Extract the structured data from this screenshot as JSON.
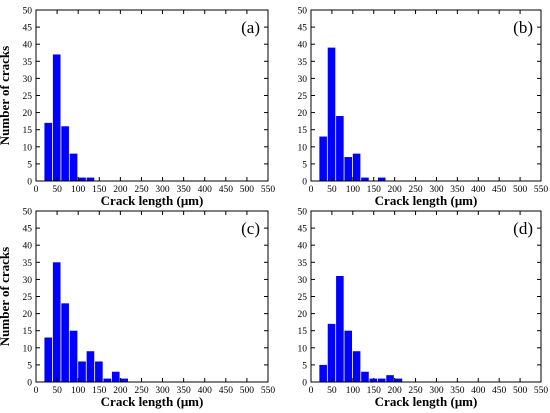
{
  "chart_data": [
    {
      "type": "bar",
      "panel_label": "(a)",
      "xlabel": "Crack length (μm)",
      "ylabel": "Number of cracks",
      "xlim": [
        0,
        550
      ],
      "ylim": [
        0,
        50
      ],
      "xticks": [
        0,
        50,
        100,
        150,
        200,
        250,
        300,
        350,
        400,
        450,
        500,
        550
      ],
      "yticks": [
        0,
        5,
        10,
        15,
        20,
        25,
        30,
        35,
        40,
        45,
        50
      ],
      "bin_width": 20,
      "bins": [
        30,
        50,
        70,
        90,
        110,
        130
      ],
      "values": [
        17,
        37,
        16,
        8,
        1,
        1
      ],
      "bar_color": "#0000ff",
      "grid": false
    },
    {
      "type": "bar",
      "panel_label": "(b)",
      "xlabel": "Crack length (μm)",
      "ylabel": "",
      "xlim": [
        0,
        550
      ],
      "ylim": [
        0,
        50
      ],
      "xticks": [
        0,
        50,
        100,
        150,
        200,
        250,
        300,
        350,
        400,
        450,
        500,
        550
      ],
      "yticks": [
        0,
        5,
        10,
        15,
        20,
        25,
        30,
        35,
        40,
        45,
        50
      ],
      "bin_width": 20,
      "bins": [
        30,
        50,
        70,
        90,
        110,
        130,
        150,
        170
      ],
      "values": [
        13,
        39,
        19,
        7,
        8,
        1,
        0,
        1
      ],
      "bar_color": "#0000ff",
      "grid": false
    },
    {
      "type": "bar",
      "panel_label": "(c)",
      "xlabel": "Crack length (μm)",
      "ylabel": "Number of cracks",
      "xlim": [
        0,
        550
      ],
      "ylim": [
        0,
        50
      ],
      "xticks": [
        0,
        50,
        100,
        150,
        200,
        250,
        300,
        350,
        400,
        450,
        500,
        550
      ],
      "yticks": [
        0,
        5,
        10,
        15,
        20,
        25,
        30,
        35,
        40,
        45,
        50
      ],
      "bin_width": 20,
      "bins": [
        30,
        50,
        70,
        90,
        110,
        130,
        150,
        170,
        190,
        210
      ],
      "values": [
        13,
        35,
        23,
        15,
        6,
        9,
        6,
        1,
        3,
        1
      ],
      "bar_color": "#0000ff",
      "grid": false
    },
    {
      "type": "bar",
      "panel_label": "(d)",
      "xlabel": "Crack length (μm)",
      "ylabel": "",
      "xlim": [
        0,
        550
      ],
      "ylim": [
        0,
        50
      ],
      "xticks": [
        0,
        50,
        100,
        150,
        200,
        250,
        300,
        350,
        400,
        450,
        500,
        550
      ],
      "yticks": [
        0,
        5,
        10,
        15,
        20,
        25,
        30,
        35,
        40,
        45,
        50
      ],
      "bin_width": 20,
      "bins": [
        30,
        50,
        70,
        90,
        110,
        130,
        150,
        170,
        190,
        210
      ],
      "values": [
        5,
        17,
        31,
        15,
        9,
        3,
        1,
        1,
        2,
        1
      ],
      "bar_color": "#0000ff",
      "grid": false
    }
  ]
}
